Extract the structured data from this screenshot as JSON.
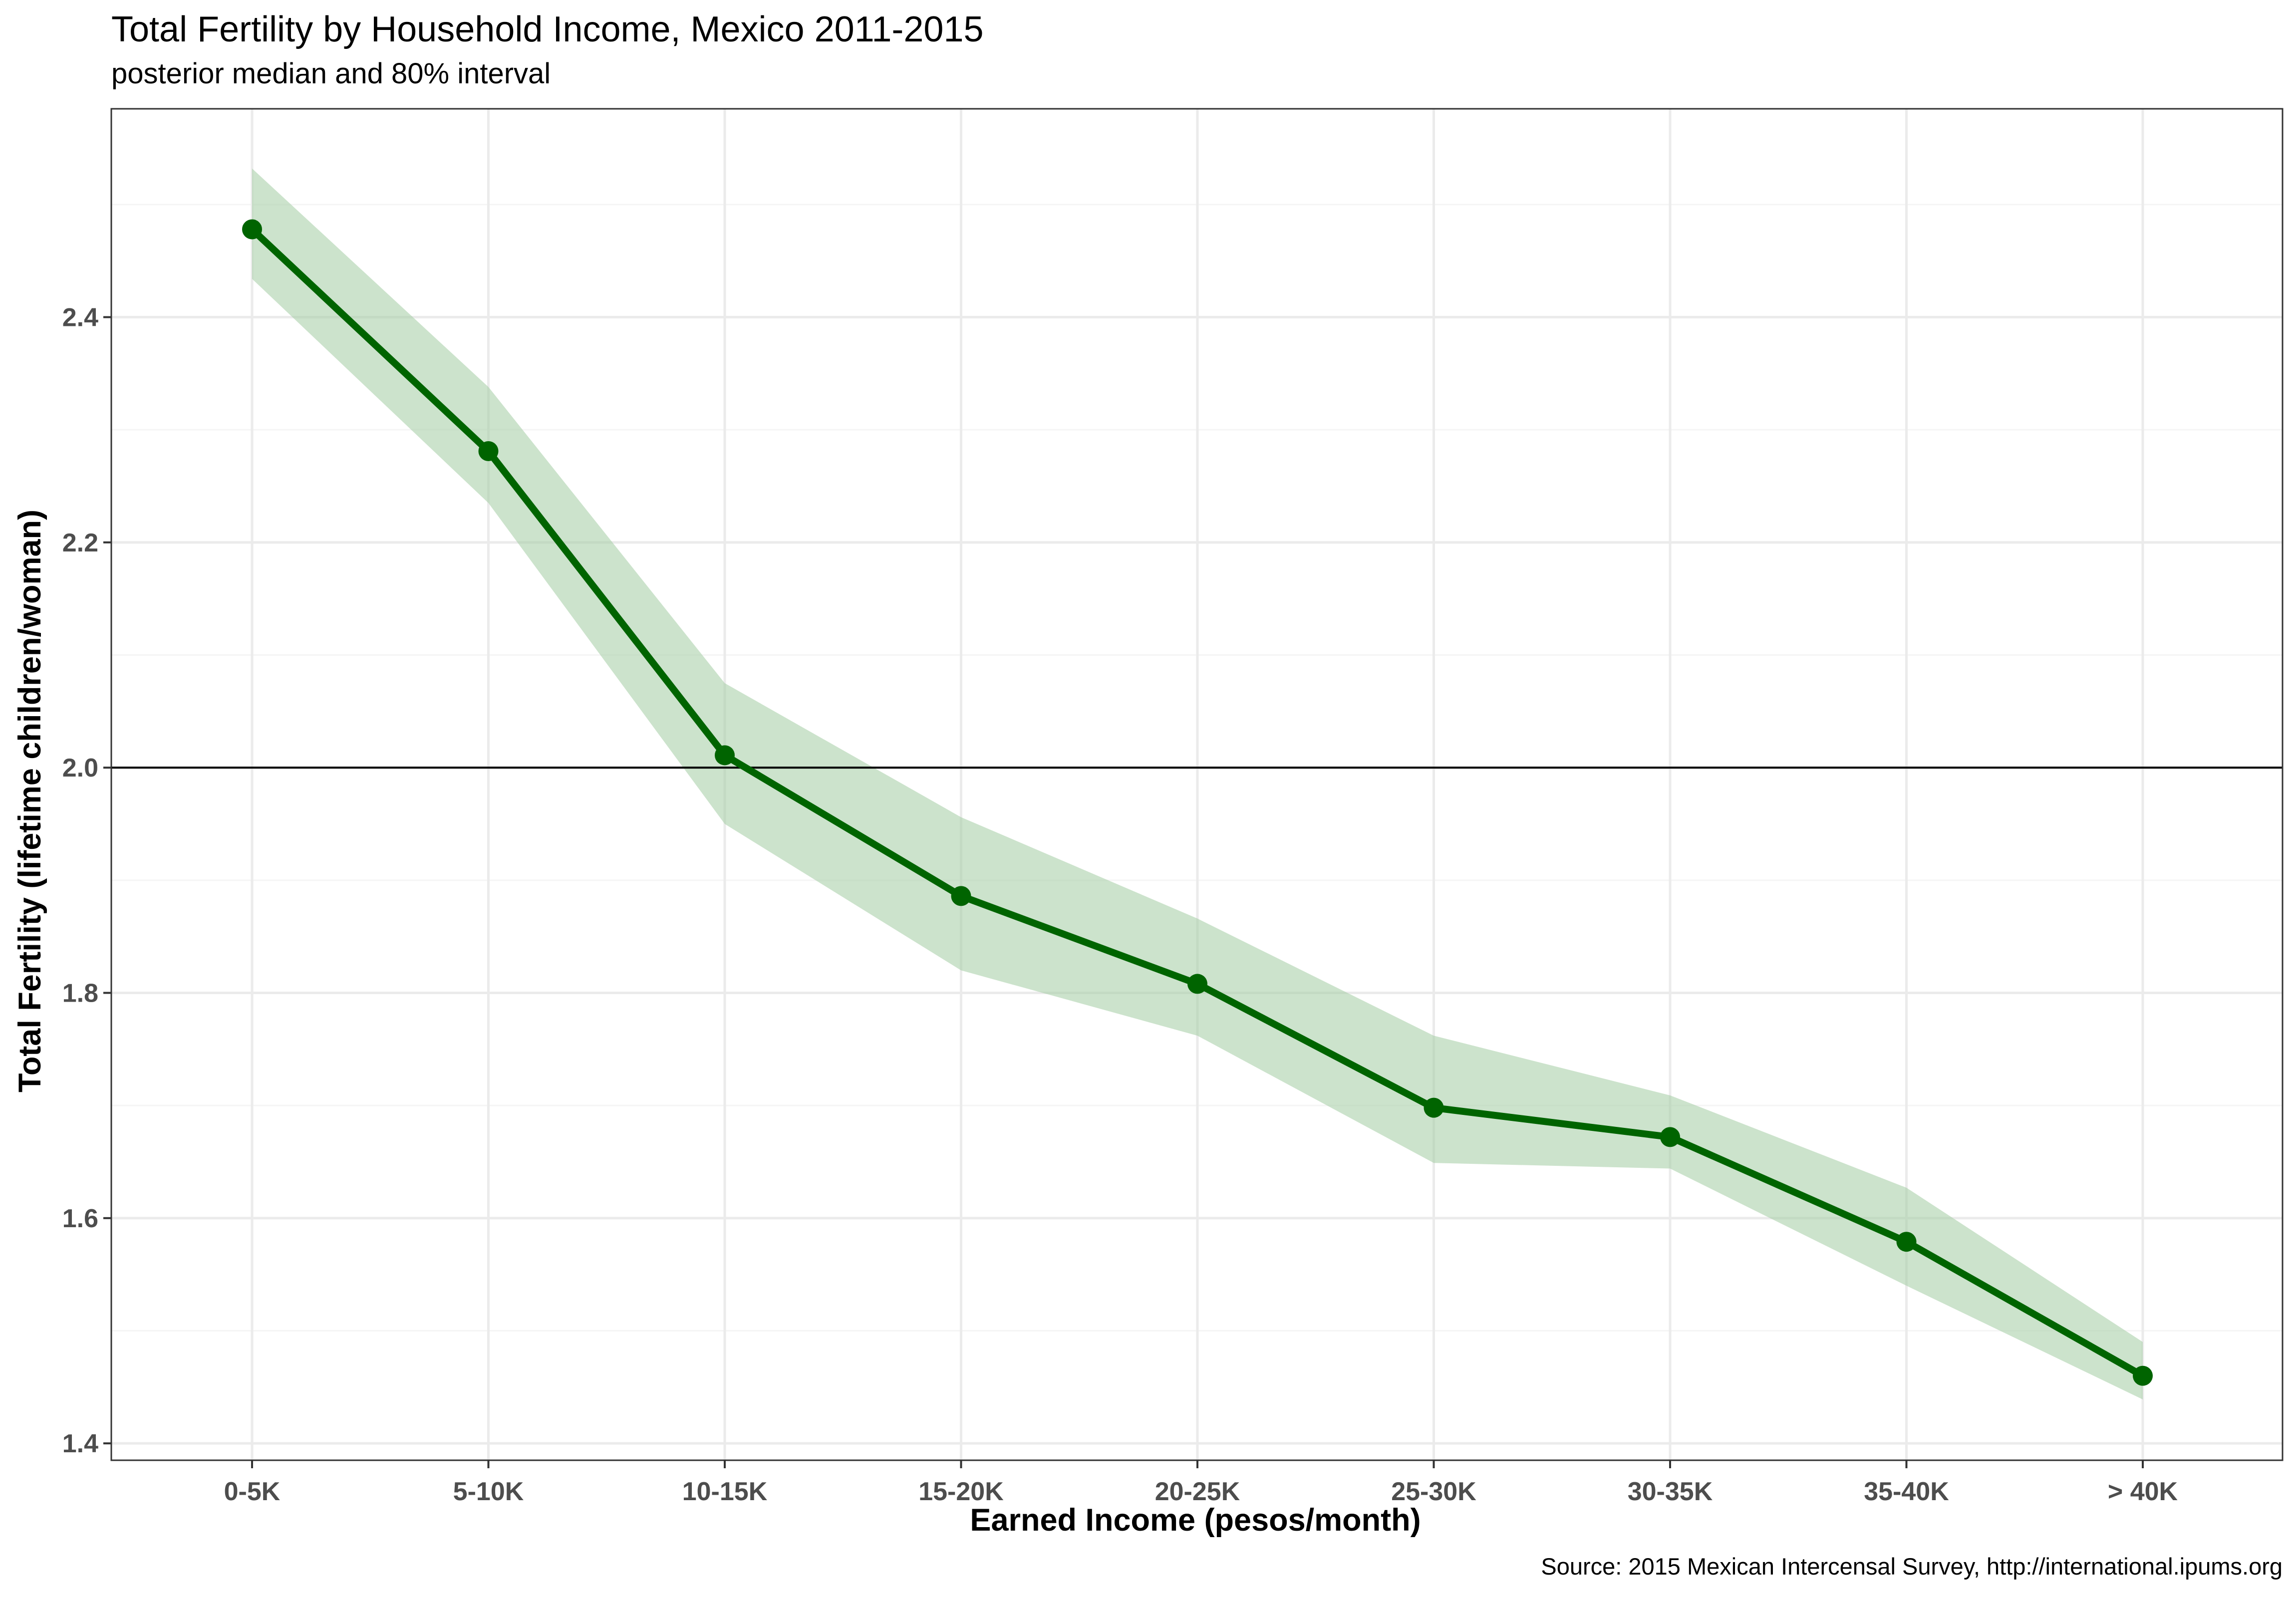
{
  "chart_data": {
    "type": "line",
    "title": "Total Fertility by Household Income, Mexico 2011-2015",
    "subtitle": "posterior median and 80% interval",
    "xlabel": "Earned Income (pesos/month)",
    "ylabel": "Total Fertility (lifetime children/woman)",
    "caption": "Source: 2015 Mexican Intercensal Survey, http://international.ipums.org",
    "categories": [
      "0-5K",
      "5-10K",
      "10-15K",
      "15-20K",
      "20-25K",
      "25-30K",
      "30-35K",
      "35-40K",
      "> 40K"
    ],
    "series": [
      {
        "values": [
          2.478,
          2.281,
          2.011,
          1.886,
          1.808,
          1.698,
          1.672,
          1.579,
          1.46
        ],
        "lower": [
          2.434,
          2.235,
          1.95,
          1.82,
          1.762,
          1.649,
          1.644,
          1.54,
          1.439
        ],
        "upper": [
          2.532,
          2.338,
          2.075,
          1.956,
          1.866,
          1.762,
          1.709,
          1.627,
          1.49
        ],
        "color": "#006400",
        "band_color": "#a3cca3"
      }
    ],
    "reference_line": {
      "y": 2.0,
      "color": "#000000"
    },
    "ylim": [
      1.385,
      2.585
    ],
    "yticks": [
      1.4,
      1.6,
      1.8,
      2.0,
      2.2,
      2.4
    ],
    "ytick_labels": [
      "1.4",
      "1.6",
      "1.8",
      "2.0",
      "2.2",
      "2.4"
    ],
    "grid": true,
    "legend": "none",
    "colors": {
      "panel_border": "#333333",
      "grid_major": "#ebebeb",
      "grid_minor": "#f5f5f5",
      "tick_text": "#4d4d4d"
    }
  }
}
